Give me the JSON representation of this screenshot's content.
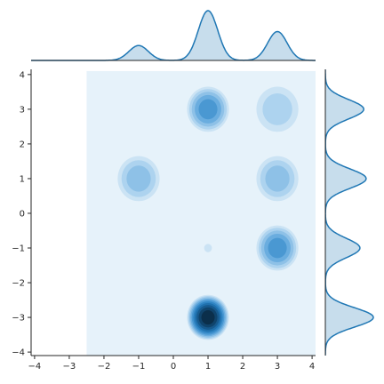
{
  "chart_data": {
    "type": "kde-joint",
    "title": "",
    "xlabel": "",
    "ylabel": "",
    "xlim": [
      -4.1,
      4.1
    ],
    "ylim": [
      -4.1,
      4.15
    ],
    "x_ticks": [
      -4,
      -3,
      -2,
      -1,
      0,
      1,
      2,
      3,
      4
    ],
    "y_ticks": [
      -4,
      -3,
      -2,
      -1,
      0,
      1,
      2,
      3,
      4
    ],
    "joint_density": {
      "fill_color": "#1f77b4",
      "support_x": [
        -2.5,
        4.1
      ],
      "support_y": [
        -4.1,
        4.1
      ],
      "peaks": [
        {
          "x": 1,
          "y": -3,
          "weight": 0.3
        },
        {
          "x": 1,
          "y": 3,
          "weight": 0.16
        },
        {
          "x": 3,
          "y": -1,
          "weight": 0.16
        },
        {
          "x": -1,
          "y": 1,
          "weight": 0.1
        },
        {
          "x": 3,
          "y": 1,
          "weight": 0.08
        },
        {
          "x": 3,
          "y": 3,
          "weight": 0.05
        },
        {
          "x": 1,
          "y": -1,
          "weight": 0.015
        }
      ]
    },
    "marginal_x": {
      "peaks": [
        {
          "x": -1,
          "height": 0.3
        },
        {
          "x": 1,
          "height": 1.0
        },
        {
          "x": 3,
          "height": 0.58
        }
      ]
    },
    "marginal_y": {
      "peaks": [
        {
          "y": -3,
          "height": 1.0
        },
        {
          "y": -1,
          "height": 0.72
        },
        {
          "y": 1,
          "height": 0.85
        },
        {
          "y": 3,
          "height": 0.8
        }
      ]
    }
  }
}
